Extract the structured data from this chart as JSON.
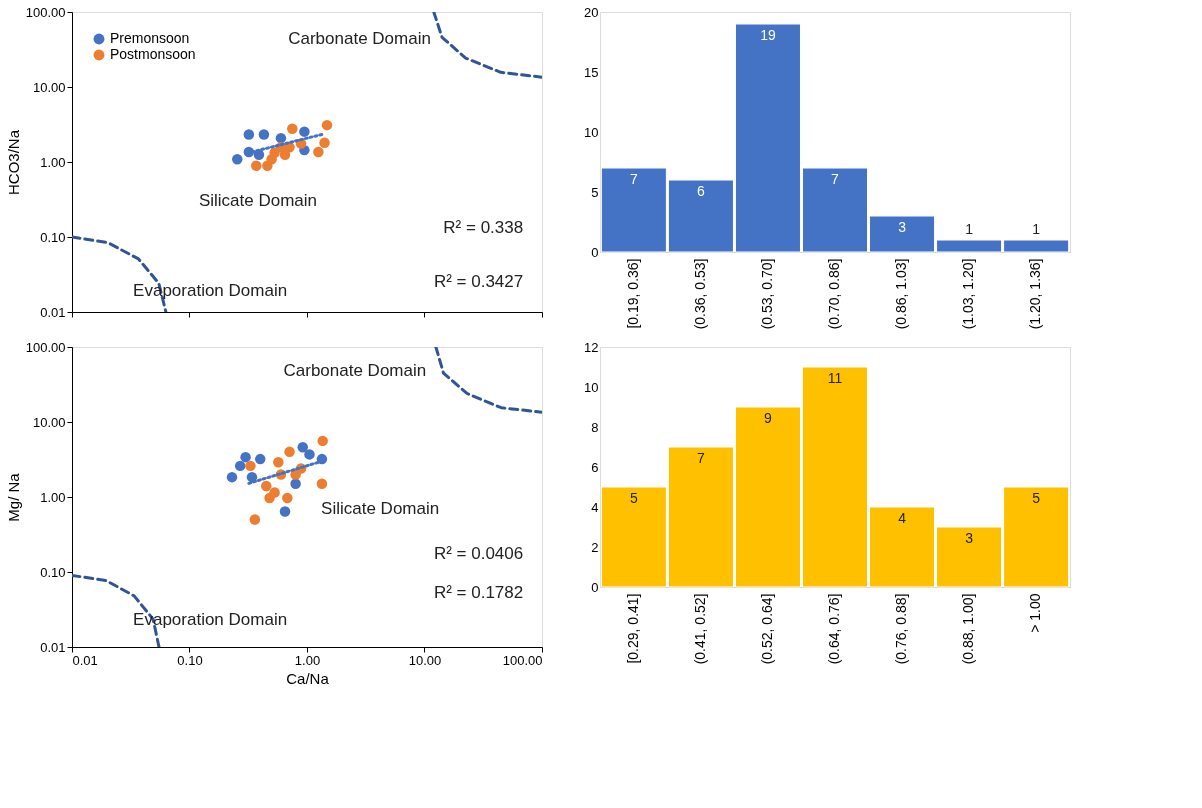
{
  "chart_data": [
    {
      "type": "scatter",
      "ylabel": "HCO3/Na",
      "log": "xy",
      "grid": false,
      "legend": "top left",
      "tick_labels": "y",
      "xlim": [
        0.01,
        100
      ],
      "xticks": [
        {
          "value": 0.01,
          "label": "0.01"
        },
        {
          "value": 0.1,
          "label": "0.10"
        },
        {
          "value": 1,
          "label": "1.00"
        },
        {
          "value": 10,
          "label": "10.00"
        },
        {
          "value": 100,
          "label": "100.00"
        }
      ],
      "ylim": [
        0.01,
        100
      ],
      "yticks": [
        {
          "value": 0.01,
          "label": "0.01"
        },
        {
          "value": 0.1,
          "label": "0.10"
        },
        {
          "value": 1,
          "label": "1.00"
        },
        {
          "value": 10,
          "label": "10.00"
        },
        {
          "value": 100,
          "label": "100.00"
        }
      ],
      "series": [
        {
          "name": "Premonsoon",
          "color": "#4472c4",
          "marker": "circle",
          "x": [
            0.255,
            0.32,
            0.43,
            0.32,
            0.95,
            0.6,
            0.95,
            0.39
          ],
          "values": [
            1.09,
            2.33,
            2.33,
            1.36,
            2.54,
            2.08,
            1.44,
            1.25
          ]
        },
        {
          "name": "Postmonsoon",
          "color": "#ed7d31",
          "marker": "circle",
          "x": [
            0.37,
            0.46,
            0.75,
            1.48,
            1.41,
            1.25,
            0.53,
            0.71,
            0.89,
            0.6,
            0.5,
            0.65
          ],
          "values": [
            0.89,
            0.89,
            2.77,
            3.1,
            1.81,
            1.36,
            1.33,
            1.57,
            1.76,
            1.57,
            1.09,
            1.25
          ]
        },
        {
          "type": "line",
          "line_style": "dotted",
          "color": "#4472c4",
          "x": [
            0.34,
            1.34
          ],
          "values": [
            1.36,
            2.33
          ]
        },
        {
          "type": "line",
          "line_style": "dashed",
          "color": "#2f5597",
          "x": [
            0.01,
            0.0202,
            0.0368,
            0.0548,
            0.063
          ],
          "values": [
            0.1,
            0.084,
            0.051,
            0.0241,
            0.01
          ]
        },
        {
          "type": "line",
          "line_style": "dashed",
          "color": "#2f5597",
          "x": [
            12,
            14.1,
            22.4,
            44.5,
            100
          ],
          "values": [
            100,
            46,
            24.3,
            15.7,
            13.5
          ]
        }
      ],
      "annotations": [
        "Carbonate Domain",
        "Silicate Domain",
        "Evaporation Domain",
        "R² = 0.338",
        "R² = 0.3427"
      ]
    },
    {
      "type": "bar",
      "color": "#4472c4",
      "data_labels": true,
      "grid": false,
      "categories": [
        "[0.19, 0.36]",
        "(0.36, 0.53]",
        "(0.53, 0.70]",
        "(0.70, 0.86]",
        "(0.86, 1.03]",
        "(1.03, 1.20]",
        "(1.20, 1.36]"
      ],
      "values": [
        7,
        6,
        19,
        7,
        3,
        1,
        1
      ],
      "ylim": [
        0,
        20
      ],
      "yticks": [
        0,
        5,
        10,
        15,
        20
      ]
    },
    {
      "type": "scatter",
      "xlabel": "Ca/Na",
      "ylabel": "Mg/ Na",
      "log": "xy",
      "grid": false,
      "legend": "top left",
      "xlim": [
        0.01,
        100
      ],
      "xticks": [
        {
          "value": 0.01,
          "label": "0.01"
        },
        {
          "value": 0.1,
          "label": "0.10"
        },
        {
          "value": 1,
          "label": "1.00"
        },
        {
          "value": 10,
          "label": "10.00"
        },
        {
          "value": 100,
          "label": "100.00"
        }
      ],
      "ylim": [
        0.01,
        100
      ],
      "yticks": [
        {
          "value": 0.01,
          "label": "0.01"
        },
        {
          "value": 0.1,
          "label": "0.10"
        },
        {
          "value": 1,
          "label": "1.00"
        },
        {
          "value": 10,
          "label": "10.00"
        },
        {
          "value": 100,
          "label": "100.00"
        }
      ],
      "series": [
        {
          "name": "Premonsoon",
          "color": "#4472c4",
          "marker": "circle",
          "x": [
            0.23,
            0.3,
            0.4,
            0.92,
            1.34,
            1.05,
            0.27,
            0.34,
            0.65,
            0.8
          ],
          "values": [
            1.84,
            3.4,
            3.2,
            4.6,
            3.2,
            3.7,
            2.6,
            1.84,
            0.64,
            1.5
          ]
        },
        {
          "name": "Postmonsoon",
          "color": "#ed7d31",
          "marker": "circle",
          "x": [
            1.36,
            0.36,
            0.33,
            0.71,
            1.34,
            0.53,
            0.45,
            0.6,
            0.8,
            0.48,
            0.68,
            0.57,
            0.89
          ],
          "values": [
            5.6,
            0.5,
            2.6,
            4.0,
            1.5,
            1.15,
            1.4,
            2.0,
            2.0,
            0.97,
            0.97,
            2.9,
            2.4
          ]
        },
        {
          "type": "line",
          "line_style": "dotted",
          "color": "#4472c4",
          "x": [
            0.32,
            1.34
          ],
          "values": [
            1.52,
            3.0
          ]
        },
        {
          "type": "line",
          "line_style": "dashed",
          "color": "#2f5597",
          "x": [
            0.01,
            0.0195,
            0.0338,
            0.049,
            0.055
          ],
          "values": [
            0.09,
            0.077,
            0.048,
            0.0235,
            0.01
          ]
        },
        {
          "type": "line",
          "line_style": "dashed",
          "color": "#2f5597",
          "x": [
            12.5,
            14.5,
            23,
            45,
            100
          ],
          "values": [
            100,
            45,
            24,
            15.5,
            13.5
          ]
        }
      ],
      "annotations": [
        "Carbonate Domain",
        "Silicate Domain",
        "Evaporation Domain",
        "R² = 0.0406",
        "R² = 0.1782"
      ]
    },
    {
      "type": "bar",
      "color": "#ffc000",
      "data_labels": true,
      "grid": false,
      "categories": [
        "[0.29, 0.41]",
        "(0.41, 0.52]",
        "(0.52, 0.64]",
        "(0.64, 0.76]",
        "(0.76, 0.88]",
        "(0.88, 1.00]",
        "> 1.00"
      ],
      "values": [
        5,
        7,
        9,
        11,
        4,
        3,
        5
      ],
      "ylim": [
        0,
        12
      ],
      "yticks": [
        0,
        2,
        4,
        6,
        8,
        10,
        12
      ]
    }
  ]
}
